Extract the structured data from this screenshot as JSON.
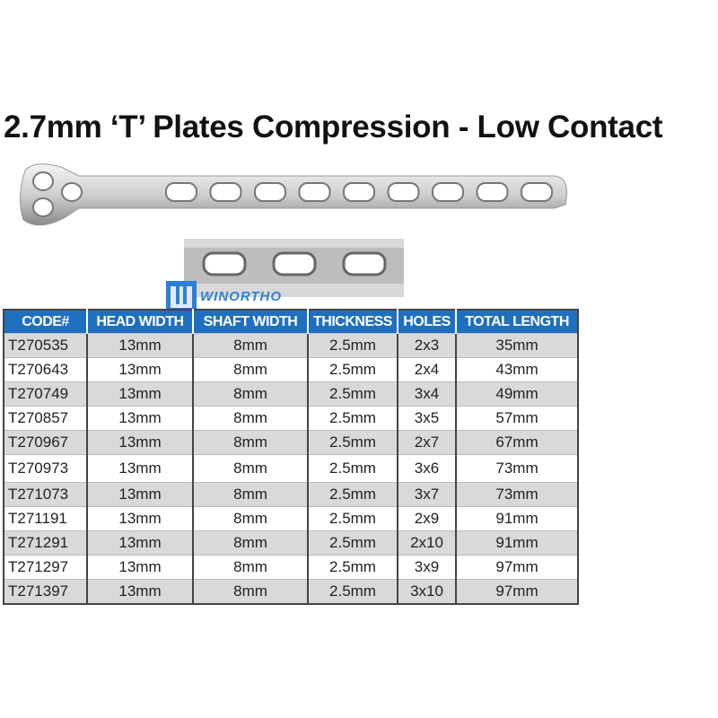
{
  "title": "2.7mm ‘T’ Plates Compression - Low Contact",
  "logo": {
    "text": "WINORTHO",
    "color": "#2f7fd6"
  },
  "table": {
    "header_color": "#1f6fc0",
    "columns": [
      "CODE#",
      "HEAD WIDTH",
      "SHAFT WIDTH",
      "THICKNESS",
      "HOLES",
      "TOTAL LENGTH"
    ],
    "rows": [
      [
        "T270535",
        "13mm",
        "8mm",
        "2.5mm",
        "2x3",
        "35mm"
      ],
      [
        "T270643",
        "13mm",
        "8mm",
        "2.5mm",
        "2x4",
        "43mm"
      ],
      [
        "T270749",
        "13mm",
        "8mm",
        "2.5mm",
        "3x4",
        "49mm"
      ],
      [
        "T270857",
        "13mm",
        "8mm",
        "2.5mm",
        "3x5",
        "57mm"
      ],
      [
        "T270967",
        "13mm",
        "8mm",
        "2.5mm",
        "2x7",
        "67mm"
      ],
      [
        "T270973",
        "13mm",
        "8mm",
        "2.5mm",
        "3x6",
        "73mm"
      ],
      [
        "T271073",
        "13mm",
        "8mm",
        "2.5mm",
        "3x7",
        "73mm"
      ],
      [
        "T271191",
        "13mm",
        "8mm",
        "2.5mm",
        "2x9",
        "91mm"
      ],
      [
        "T271291",
        "13mm",
        "8mm",
        "2.5mm",
        "2x10",
        "91mm"
      ],
      [
        "T271297",
        "13mm",
        "8mm",
        "2.5mm",
        "3x9",
        "97mm"
      ],
      [
        "T271397",
        "13mm",
        "8mm",
        "2.5mm",
        "3x10",
        "97mm"
      ]
    ]
  }
}
